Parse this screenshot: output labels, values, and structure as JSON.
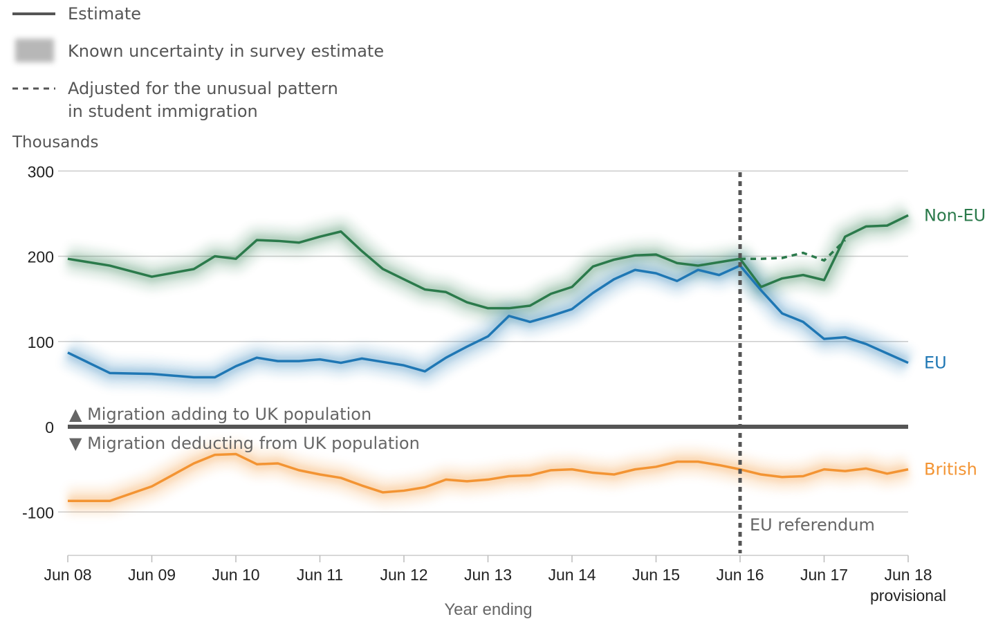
{
  "legend": {
    "estimate": "Estimate",
    "uncertainty": "Known uncertainty in survey estimate",
    "adjusted_line1": "Adjusted for the unusual pattern",
    "adjusted_line2": "in student immigration"
  },
  "chart_data": {
    "type": "line",
    "ylabel": "Thousands",
    "xlabel": "Year ending",
    "ylim": [
      -150,
      300
    ],
    "xlim": [
      2008.5,
      2018.5
    ],
    "grid": true,
    "y_ticks": [
      300,
      200,
      100,
      0,
      -100
    ],
    "x_ticks": [
      {
        "x": 2008.5,
        "label": "Jun 08"
      },
      {
        "x": 2009.5,
        "label": "Jun 09"
      },
      {
        "x": 2010.5,
        "label": "Jun 10"
      },
      {
        "x": 2011.5,
        "label": "Jun 11"
      },
      {
        "x": 2012.5,
        "label": "Jun 12"
      },
      {
        "x": 2013.5,
        "label": "Jun 13"
      },
      {
        "x": 2014.5,
        "label": "Jun 14"
      },
      {
        "x": 2015.5,
        "label": "Jun 15"
      },
      {
        "x": 2016.5,
        "label": "Jun 16"
      },
      {
        "x": 2017.5,
        "label": "Jun 17"
      },
      {
        "x": 2018.5,
        "label": "Jun 18"
      }
    ],
    "x_tick_sublabel": "provisional",
    "x": [
      2008.5,
      2009.0,
      2009.5,
      2010.0,
      2010.25,
      2010.5,
      2010.75,
      2011.0,
      2011.25,
      2011.5,
      2011.75,
      2012.0,
      2012.25,
      2012.5,
      2012.75,
      2013.0,
      2013.25,
      2013.5,
      2013.75,
      2014.0,
      2014.25,
      2014.5,
      2014.75,
      2015.0,
      2015.25,
      2015.5,
      2015.75,
      2016.0,
      2016.25,
      2016.5,
      2016.75,
      2017.0,
      2017.25,
      2017.5,
      2017.75,
      2018.0,
      2018.25,
      2018.5
    ],
    "series": [
      {
        "name": "Non-EU",
        "color": "#2b7a4b",
        "values": [
          197,
          189,
          176,
          185,
          200,
          197,
          219,
          218,
          216,
          223,
          229,
          206,
          185,
          173,
          161,
          158,
          146,
          139,
          139,
          142,
          156,
          164,
          188,
          196,
          201,
          202,
          192,
          189,
          193,
          197,
          164,
          174,
          178,
          172,
          223,
          235,
          236,
          248
        ]
      },
      {
        "name": "EU",
        "color": "#1f77b4",
        "values": [
          87,
          63,
          62,
          58,
          58,
          71,
          81,
          77,
          77,
          79,
          75,
          80,
          76,
          72,
          65,
          81,
          94,
          106,
          130,
          123,
          130,
          138,
          157,
          173,
          184,
          180,
          171,
          184,
          178,
          189,
          160,
          133,
          123,
          103,
          105,
          97,
          86,
          75
        ]
      },
      {
        "name": "British",
        "color": "#f39433",
        "values": [
          -87,
          -87,
          -70,
          -43,
          -33,
          -32,
          -44,
          -43,
          -51,
          -56,
          -60,
          -69,
          -77,
          -75,
          -71,
          -62,
          -64,
          -62,
          -58,
          -57,
          -51,
          -50,
          -54,
          -56,
          -50,
          -47,
          -41,
          -41,
          -45,
          -50,
          -56,
          -59,
          -58,
          -50,
          -52,
          -49,
          -55,
          -50
        ]
      }
    ],
    "adjusted_non_eu": {
      "x": [
        2016.5,
        2016.75,
        2017.0,
        2017.25,
        2017.5,
        2017.75
      ],
      "values": [
        197,
        197,
        198,
        204,
        195,
        219
      ]
    },
    "annotations": {
      "adding": "▲ Migration adding to UK population",
      "deducting": "▼ Migration deducting from UK population",
      "referendum": "EU referendum",
      "referendum_x": 2016.5
    }
  }
}
